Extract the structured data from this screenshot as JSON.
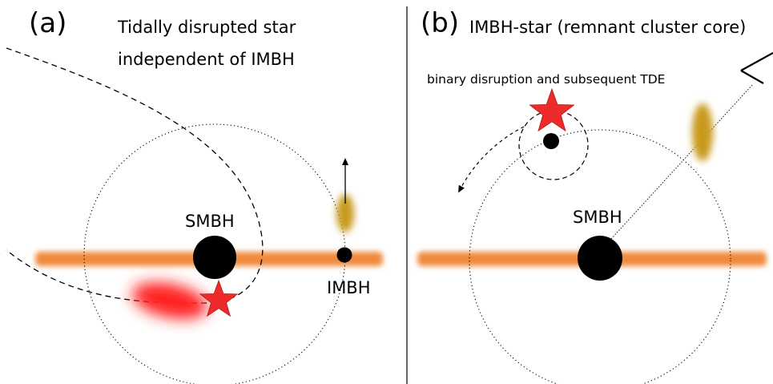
{
  "panel_a": {
    "tag": "(a)",
    "caption_line1": "Tidally disrupted star",
    "caption_line2": "independent of IMBH",
    "smbh_label": "SMBH",
    "imbh_label": "IMBH"
  },
  "panel_b": {
    "tag": "(b)",
    "caption": "IMBH-star (remnant cluster core)",
    "subcaption": "binary disruption and subsequent TDE",
    "smbh_label": "SMBH"
  },
  "colors": {
    "disk": "#f08a3c",
    "star": "#ee2b2b",
    "stream": "#ff2020",
    "cluster_blob": "#c89a1e",
    "black_hole": "#000000"
  }
}
